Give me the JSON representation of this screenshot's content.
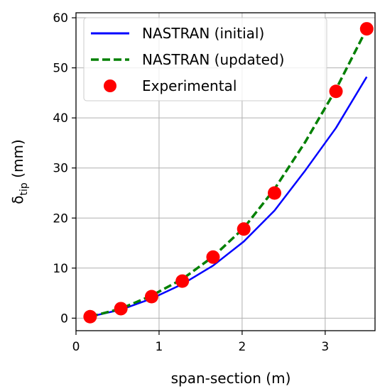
{
  "chart_data": {
    "type": "line",
    "xlabel": "span-section (m)",
    "ylabel": "δ",
    "ylabel_sub": "tip",
    "ylabel_unit": " (mm)",
    "xlim": [
      0,
      3.6
    ],
    "ylim": [
      -2.5,
      61
    ],
    "xticks": [
      0,
      1,
      2,
      3
    ],
    "yticks": [
      0,
      10,
      20,
      30,
      40,
      50,
      60
    ],
    "grid": true,
    "legend_position": "top-left",
    "series": [
      {
        "name": "NASTRAN (initial)",
        "style": "solid",
        "color": "#0000ff",
        "x": [
          0.17,
          0.54,
          0.91,
          1.28,
          1.65,
          2.02,
          2.39,
          2.76,
          3.13,
          3.5
        ],
        "y": [
          0.3,
          1.7,
          3.9,
          6.8,
          10.5,
          15.3,
          21.5,
          29.5,
          38.0,
          48.2
        ]
      },
      {
        "name": "NASTRAN (updated)",
        "style": "dashed",
        "color": "#008000",
        "x": [
          0.17,
          0.54,
          0.91,
          1.28,
          1.65,
          2.02,
          2.39,
          2.76,
          3.13,
          3.5
        ],
        "y": [
          0.3,
          1.9,
          4.5,
          7.8,
          12.3,
          18.0,
          25.8,
          35.2,
          45.7,
          57.8
        ]
      },
      {
        "name": "Experimental",
        "style": "markers",
        "color": "#ff0000",
        "x": [
          0.17,
          0.54,
          0.91,
          1.28,
          1.65,
          2.02,
          2.39,
          3.13,
          3.5
        ],
        "y": [
          0.3,
          1.9,
          4.3,
          7.4,
          12.2,
          17.8,
          25.0,
          45.3,
          57.8
        ]
      }
    ]
  }
}
